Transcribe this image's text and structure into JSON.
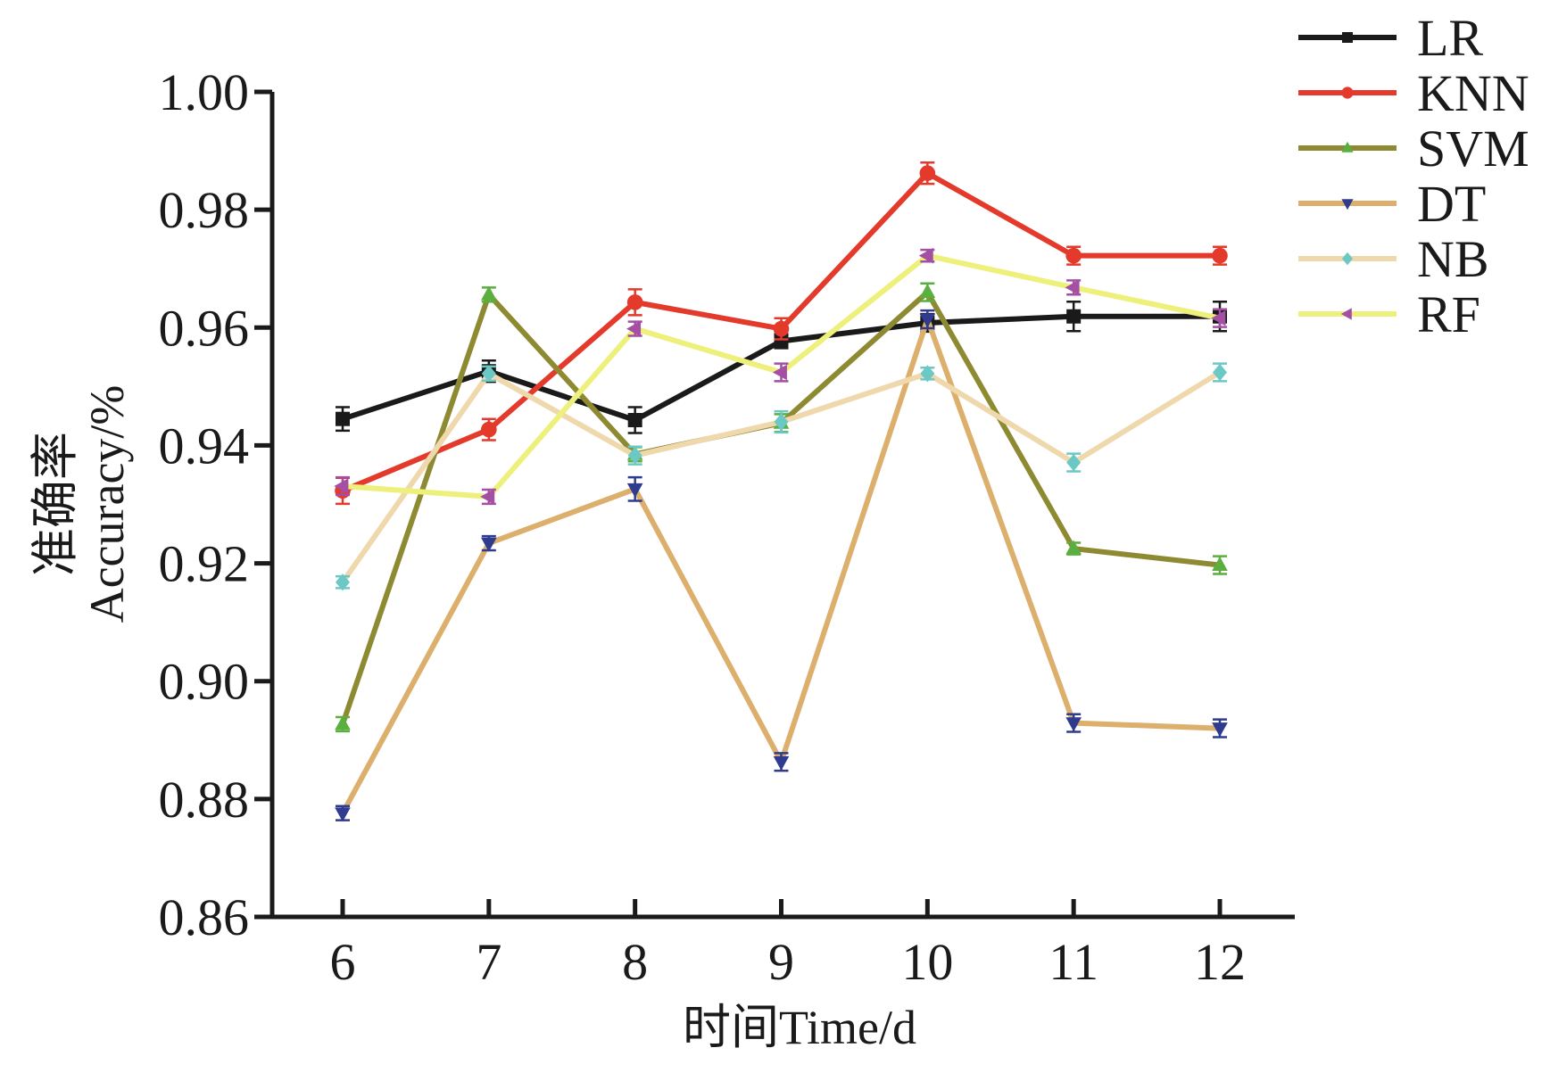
{
  "chart_data": {
    "type": "line",
    "title": "",
    "xlabel": "时间Time/d",
    "ylabel_line1": "准确率",
    "ylabel_line2": "Accuracy/%",
    "x": [
      6,
      7,
      8,
      9,
      10,
      11,
      12
    ],
    "x_tick_labels": [
      "6",
      "7",
      "8",
      "9",
      "10",
      "11",
      "12"
    ],
    "ylim": [
      0.86,
      1.0
    ],
    "y_ticks": [
      0.86,
      0.88,
      0.9,
      0.92,
      0.94,
      0.96,
      0.98,
      1.0
    ],
    "y_tick_labels": [
      "0.86",
      "0.88",
      "0.90",
      "0.92",
      "0.94",
      "0.96",
      "0.98",
      "1.00"
    ],
    "grid": false,
    "legend_position": "top-right outside",
    "series": [
      {
        "name": "LR",
        "line_color": "#1a1a1a",
        "marker_color": "#1a1a1a",
        "marker": "square",
        "values": [
          0.9445,
          0.9526,
          0.9443,
          0.9577,
          0.9608,
          0.9619,
          0.9619
        ],
        "errors": [
          0.002,
          0.0018,
          0.0022,
          0.0012,
          0.0015,
          0.0025,
          0.0025
        ]
      },
      {
        "name": "KNN",
        "line_color": "#e33a2c",
        "marker_color": "#e33a2c",
        "marker": "circle",
        "values": [
          0.9323,
          0.9427,
          0.9643,
          0.9598,
          0.9862,
          0.9722,
          0.9722
        ],
        "errors": [
          0.0022,
          0.0018,
          0.0022,
          0.0018,
          0.0018,
          0.0015,
          0.0015
        ]
      },
      {
        "name": "SVM",
        "line_color": "#8e8a32",
        "marker_color": "#5aaf3e",
        "marker": "triangle-up",
        "values": [
          0.8927,
          0.9656,
          0.9385,
          0.9438,
          0.966,
          0.9225,
          0.9197
        ],
        "errors": [
          0.0012,
          0.0012,
          0.0012,
          0.0015,
          0.0015,
          0.001,
          0.0015
        ]
      },
      {
        "name": "DT",
        "line_color": "#dcb06c",
        "marker_color": "#2e3b8f",
        "marker": "triangle-down",
        "values": [
          0.8776,
          0.9234,
          0.9326,
          0.8863,
          0.9614,
          0.8929,
          0.892
        ],
        "errors": [
          0.0012,
          0.0012,
          0.002,
          0.0015,
          0.0015,
          0.0015,
          0.0015
        ]
      },
      {
        "name": "NB",
        "line_color": "#f0d8ad",
        "marker_color": "#6cc8c4",
        "marker": "diamond",
        "values": [
          0.9168,
          0.9522,
          0.9383,
          0.944,
          0.9522,
          0.9371,
          0.9524
        ],
        "errors": [
          0.001,
          0.0012,
          0.0015,
          0.0018,
          0.001,
          0.0015,
          0.0015
        ]
      },
      {
        "name": "RF",
        "line_color": "#eef07c",
        "marker_color": "#a44ea4",
        "marker": "triangle-left",
        "values": [
          0.9331,
          0.9313,
          0.9598,
          0.9524,
          0.9722,
          0.9668,
          0.9616
        ],
        "errors": [
          0.0015,
          0.0012,
          0.0012,
          0.0015,
          0.001,
          0.0012,
          0.0015
        ]
      }
    ]
  }
}
